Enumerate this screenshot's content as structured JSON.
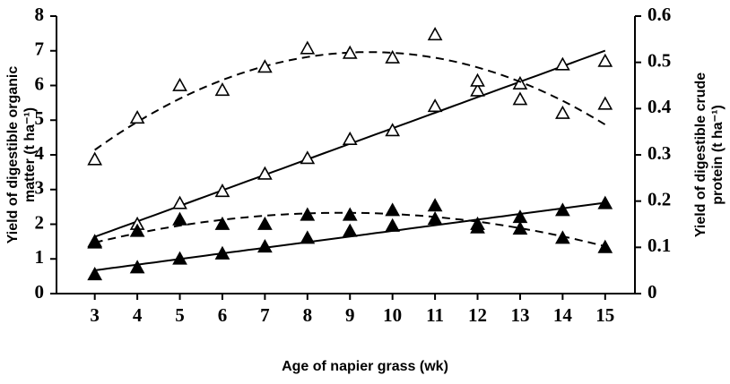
{
  "chart_data": {
    "type": "scatter",
    "x_label": "Age of napier grass (wk)",
    "y_label": [
      "Yield of digestible organic",
      "matter (t ha⁻¹)"
    ],
    "y2_label": [
      "Yield of digestible crude",
      "protein (t ha⁻¹)"
    ],
    "x": [
      3,
      4,
      5,
      6,
      7,
      8,
      9,
      10,
      11,
      12,
      13,
      14,
      15
    ],
    "series": [
      {
        "color": "#000",
        "marker": "open",
        "trend": "linear",
        "values": [
          1.5,
          2.0,
          2.6,
          2.95,
          3.45,
          3.9,
          4.45,
          4.7,
          5.4,
          5.85,
          6.05,
          6.6,
          6.7
        ]
      },
      {
        "color": "#000",
        "marker": "open",
        "trend": "quadratic",
        "axis": "y2",
        "values": [
          0.29,
          0.38,
          0.45,
          0.44,
          0.49,
          0.53,
          0.52,
          0.51,
          0.56,
          0.46,
          0.42,
          0.39,
          0.41
        ]
      },
      {
        "color": "#000",
        "marker": "filled",
        "trend": "linear",
        "values": [
          0.55,
          0.75,
          1.0,
          1.15,
          1.35,
          1.6,
          1.8,
          1.95,
          2.15,
          1.9,
          2.2,
          2.4,
          2.6
        ]
      },
      {
        "color": "#000",
        "marker": "filled",
        "trend": "quadratic",
        "axis": "y2",
        "values": [
          0.11,
          0.135,
          0.16,
          0.15,
          0.15,
          0.17,
          0.17,
          0.18,
          0.19,
          0.15,
          0.14,
          0.12,
          0.1
        ]
      }
    ],
    "xlim": [
      2.1,
      15.7
    ],
    "xticks": [
      3,
      4,
      5,
      6,
      7,
      8,
      9,
      10,
      11,
      12,
      13,
      14,
      15
    ],
    "ylim": [
      0,
      8
    ],
    "yticks": [
      0,
      1,
      2,
      3,
      4,
      5,
      6,
      7,
      8
    ],
    "y2lim": [
      0,
      0.6
    ],
    "y2ticks": [
      0,
      0.1,
      0.2,
      0.3,
      0.4,
      0.5,
      0.6
    ]
  }
}
